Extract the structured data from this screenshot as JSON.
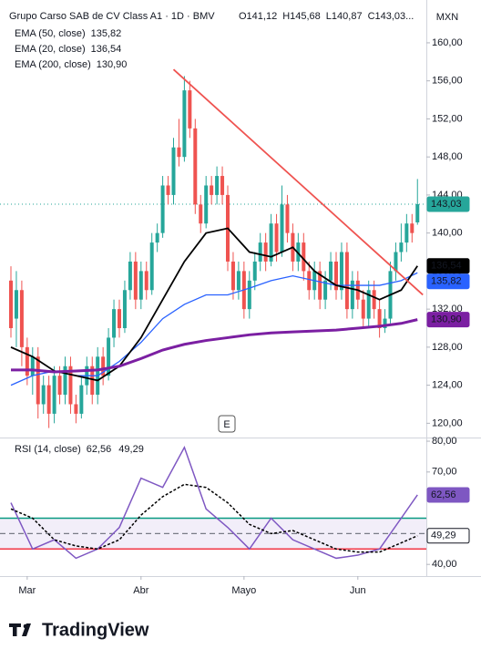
{
  "chart_data": {
    "type": "candlestick",
    "title": "Grupo Carso SAB de CV Class A1 · 1D · BMV",
    "ohlc_labels": [
      "O141,12",
      "H145,68",
      "L140,87",
      "C143,03..."
    ],
    "currency": "MXN",
    "marker": "E",
    "brand": "TradingView",
    "up_color": "#26a69a",
    "down_color": "#ef5350",
    "candles": [
      [
        135,
        136.5,
        129,
        130
      ],
      [
        131,
        136,
        128,
        134
      ],
      [
        134,
        135,
        126,
        128
      ],
      [
        128,
        129,
        124,
        125
      ],
      [
        125,
        128,
        123,
        127
      ],
      [
        127,
        128,
        120.5,
        122
      ],
      [
        122,
        125,
        121,
        124
      ],
      [
        124,
        125,
        119.5,
        121
      ],
      [
        121,
        126,
        120,
        125
      ],
      [
        125,
        126,
        122,
        123
      ],
      [
        123,
        127,
        122,
        126
      ],
      [
        126,
        127,
        121,
        122
      ],
      [
        122,
        123,
        120,
        121
      ],
      [
        121,
        125,
        120.5,
        124
      ],
      [
        124,
        127,
        123,
        126
      ],
      [
        126,
        127,
        122,
        123
      ],
      [
        123,
        128,
        122,
        127
      ],
      [
        127,
        128,
        124,
        125
      ],
      [
        125,
        130,
        124.5,
        129
      ],
      [
        129,
        133,
        128,
        132
      ],
      [
        132,
        133,
        129,
        130
      ],
      [
        130,
        135,
        129.5,
        134
      ],
      [
        134,
        138,
        133,
        137
      ],
      [
        137,
        138,
        132,
        133
      ],
      [
        133,
        137,
        132,
        136
      ],
      [
        136,
        137,
        133,
        134
      ],
      [
        134,
        140,
        133.5,
        139
      ],
      [
        139,
        141,
        138,
        140
      ],
      [
        140,
        146,
        139.5,
        145
      ],
      [
        145,
        146,
        143,
        144
      ],
      [
        144,
        150,
        143,
        149
      ],
      [
        149,
        152,
        147,
        148
      ],
      [
        148,
        156.5,
        147.5,
        155
      ],
      [
        155,
        156,
        150,
        151
      ],
      [
        151,
        152,
        142,
        143
      ],
      [
        143,
        144,
        140,
        141
      ],
      [
        141,
        146,
        140.5,
        145
      ],
      [
        145,
        146,
        143,
        144
      ],
      [
        144,
        147,
        143,
        146
      ],
      [
        146,
        147,
        143,
        144
      ],
      [
        144,
        145,
        136,
        137
      ],
      [
        137,
        138,
        133,
        134
      ],
      [
        134,
        137,
        133,
        136
      ],
      [
        136,
        137,
        131,
        132
      ],
      [
        132,
        136,
        131,
        135
      ],
      [
        135,
        138,
        134,
        137
      ],
      [
        137,
        140,
        136,
        139
      ],
      [
        139,
        140,
        136,
        137
      ],
      [
        137,
        142,
        136.5,
        141
      ],
      [
        141,
        142,
        137,
        138
      ],
      [
        138,
        145,
        137.5,
        143
      ],
      [
        143,
        144,
        139,
        140
      ],
      [
        140,
        141,
        136,
        137
      ],
      [
        137,
        140,
        136,
        139
      ],
      [
        139,
        140,
        135,
        136
      ],
      [
        136,
        137,
        133,
        134
      ],
      [
        134,
        137,
        133,
        136
      ],
      [
        136,
        137,
        132,
        133
      ],
      [
        133,
        136,
        132,
        135
      ],
      [
        135,
        138,
        134,
        137
      ],
      [
        137,
        138,
        133,
        134
      ],
      [
        134,
        139,
        133,
        138
      ],
      [
        138,
        139,
        131,
        132
      ],
      [
        132,
        136,
        131,
        135
      ],
      [
        135,
        136,
        132,
        133
      ],
      [
        133,
        134,
        130,
        131
      ],
      [
        131,
        135,
        130,
        134
      ],
      [
        134,
        135,
        131,
        132
      ],
      [
        132,
        133,
        129,
        130
      ],
      [
        130,
        132,
        129.5,
        131
      ],
      [
        131,
        137,
        130.5,
        136
      ],
      [
        136,
        139,
        135,
        138
      ],
      [
        138,
        141,
        137,
        139
      ],
      [
        139,
        142,
        138,
        141
      ],
      [
        141,
        142,
        139,
        140
      ],
      [
        141.12,
        145.68,
        140.87,
        143.03
      ]
    ],
    "last_label": "143,03",
    "ylim": [
      118.5,
      164.5
    ],
    "yticks": [
      {
        "value": 120,
        "label": "120,00"
      },
      {
        "value": 124,
        "label": "124,00"
      },
      {
        "value": 128,
        "label": "128,00"
      },
      {
        "value": 132,
        "label": "132,00"
      },
      {
        "value": 136,
        "label": "136,00"
      },
      {
        "value": 140,
        "label": "140,00"
      },
      {
        "value": 144,
        "label": "144,00"
      },
      {
        "value": 148,
        "label": "148,00"
      },
      {
        "value": 152,
        "label": "152,00"
      },
      {
        "value": 156,
        "label": "156,00"
      },
      {
        "value": 160,
        "label": "160,00"
      }
    ],
    "time_ticks": [
      {
        "value": 3,
        "label": "Mar"
      },
      {
        "value": 24,
        "label": "Abr"
      },
      {
        "value": 43,
        "label": "Mayo"
      },
      {
        "value": 64,
        "label": "Jun"
      }
    ],
    "line_index": [
      0,
      4,
      8,
      12,
      16,
      20,
      24,
      28,
      32,
      36,
      40,
      44,
      48,
      52,
      56,
      60,
      64,
      68,
      72,
      75
    ],
    "series": [
      {
        "name": "EMA (50, close)",
        "value_label": "135,82",
        "color": "#2962ff",
        "width": 1.3,
        "values": [
          124,
          125,
          125.5,
          125,
          125,
          126.5,
          128.5,
          131,
          132.5,
          133.5,
          133.5,
          134.2,
          135,
          135.5,
          135,
          134.5,
          134.5,
          134.5,
          135,
          135.82
        ]
      },
      {
        "name": "EMA (20, close)",
        "value_label": "136,54",
        "color": "#000000",
        "width": 1.8,
        "values": [
          128,
          127,
          125.5,
          125,
          124.5,
          126,
          129,
          133,
          137,
          140,
          140.5,
          138,
          137.5,
          138.5,
          136,
          134.5,
          134,
          133,
          134,
          136.54
        ]
      },
      {
        "name": "EMA (200, close)",
        "value_label": "130,90",
        "color": "#7b1fa2",
        "width": 3,
        "values": [
          125.6,
          125.6,
          125.4,
          125.5,
          125.6,
          126,
          126.8,
          127.7,
          128.3,
          128.7,
          129,
          129.3,
          129.5,
          129.6,
          129.7,
          129.8,
          130,
          130.2,
          130.5,
          130.9
        ]
      }
    ],
    "trendline": {
      "x_index": [
        30,
        76
      ],
      "values": [
        157.2,
        133.5
      ],
      "color": "#ef5350"
    },
    "rsi": {
      "title": "RSI (14, close)",
      "ylim": [
        36.8,
        80.6
      ],
      "yticks": [
        {
          "value": 40,
          "label": "40,00"
        },
        {
          "value": 70,
          "label": "70,00"
        },
        {
          "value": 80,
          "label": "80,00"
        }
      ],
      "upper_band": 55,
      "middle": 50,
      "lower_band": 45,
      "series": [
        {
          "name": "RSI",
          "value_label": "62,56",
          "color": "#7e57c2",
          "values": [
            60,
            45,
            48,
            42,
            45,
            52,
            68,
            65,
            78,
            58,
            52,
            45,
            55,
            48,
            45,
            42,
            43,
            45,
            55,
            62.56
          ]
        },
        {
          "name": "MA",
          "value_label": "49,29",
          "color": "#000000",
          "dashed": true,
          "values": [
            58,
            55,
            48,
            46,
            45,
            48,
            56,
            62,
            66,
            65,
            60,
            53,
            50,
            51,
            48,
            45,
            44,
            44,
            47,
            49.29
          ]
        }
      ]
    }
  }
}
